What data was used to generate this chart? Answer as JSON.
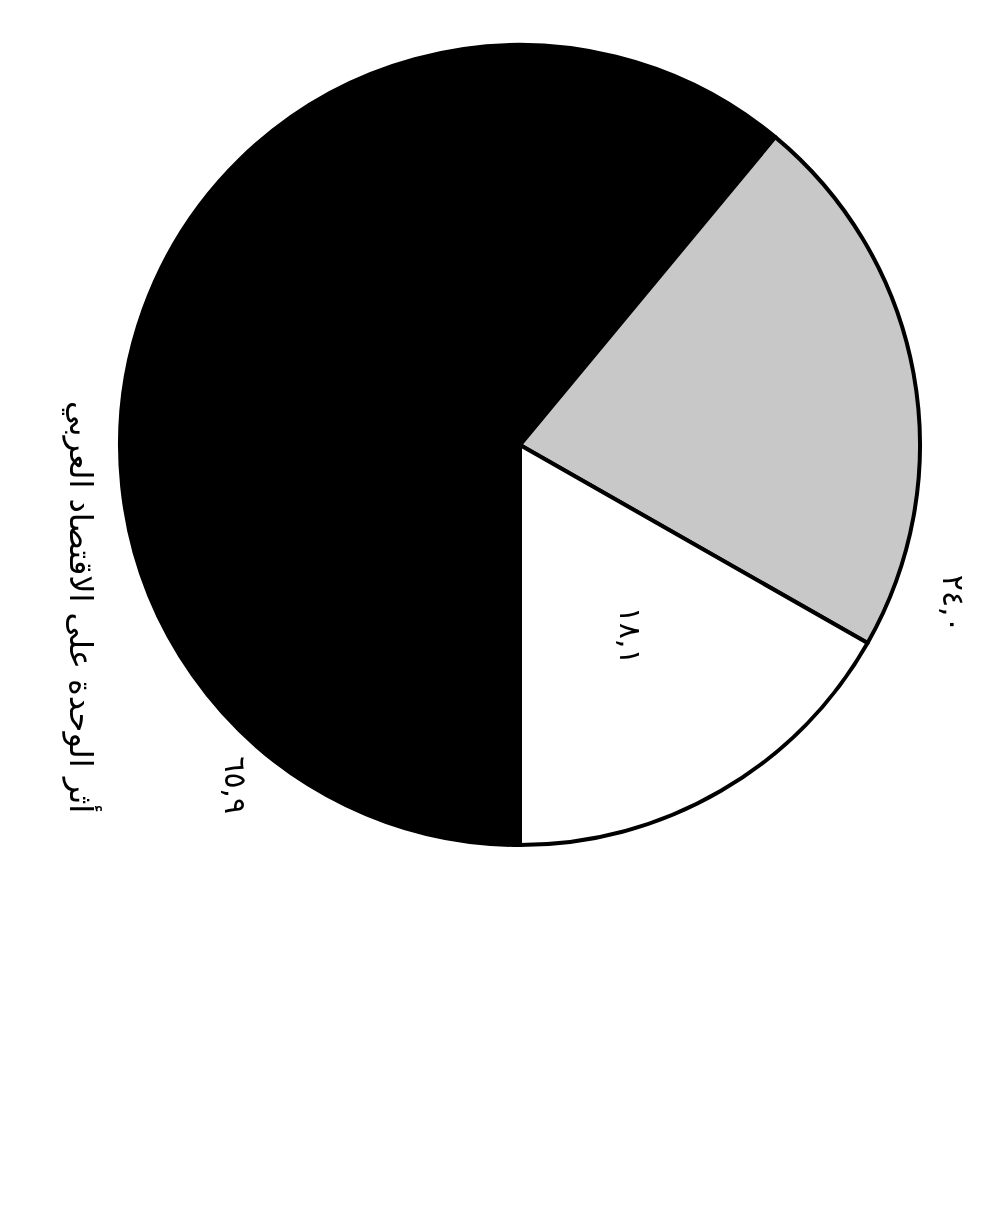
{
  "chart_data": {
    "type": "pie",
    "title": "أثر الوحدة على الاقتصاد العربي",
    "categories": [
      null,
      null,
      null
    ],
    "values": [
      65.9,
      24.0,
      18.1
    ],
    "value_labels": [
      "٦٥,٩",
      "٢٤,٠",
      "١٨,١"
    ],
    "colors": [
      "#000000",
      "#c8c8c8",
      "#ffffff"
    ],
    "legend": false
  }
}
